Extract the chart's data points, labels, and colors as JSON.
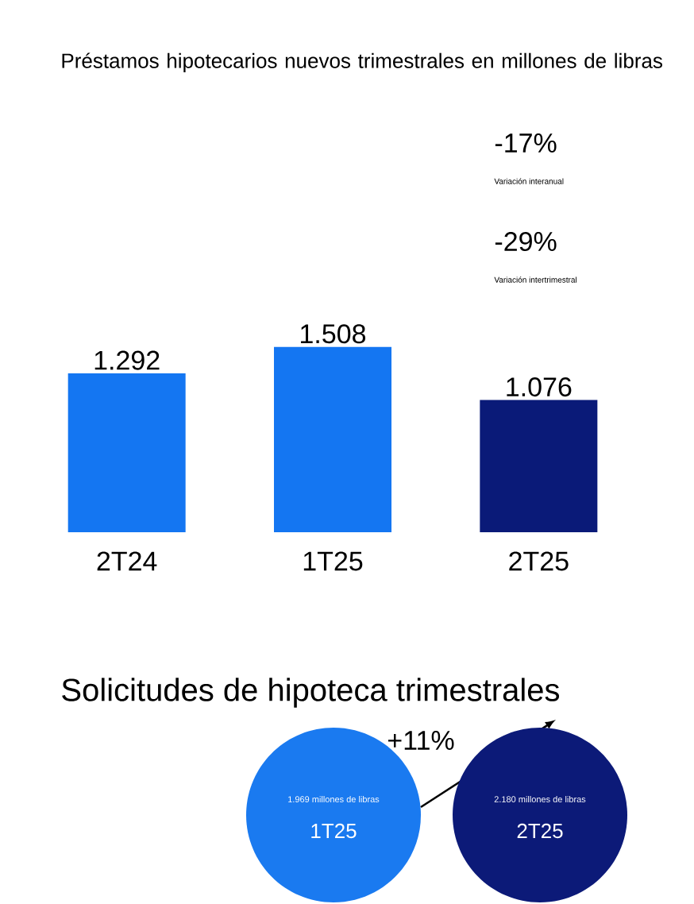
{
  "chart_data": [
    {
      "type": "bar",
      "title": "Préstamos hipotecarios nuevos trimestrales en millones de libras",
      "categories": [
        "2T24",
        "1T25",
        "2T25"
      ],
      "values": [
        1292,
        1508,
        1076
      ],
      "value_labels": [
        "1.292",
        "1.508",
        "1.076"
      ],
      "colors": [
        "#1476f2",
        "#1476f2",
        "#0a1a78"
      ],
      "annotations": [
        "-17%",
        "Variación interanual",
        "-29%",
        "Variación intertrimestral"
      ]
    },
    {
      "type": "other",
      "title": "Solicitudes de hipoteca trimestrales",
      "categories": [
        "1T25",
        "2T25"
      ],
      "values": [
        1969,
        2180
      ],
      "value_labels": [
        "1.969 millones de libras",
        "2.180 millones de libras"
      ],
      "colors": [
        "#1a7af0",
        "#0c1a78"
      ],
      "annotations": [
        "+11%"
      ]
    }
  ]
}
